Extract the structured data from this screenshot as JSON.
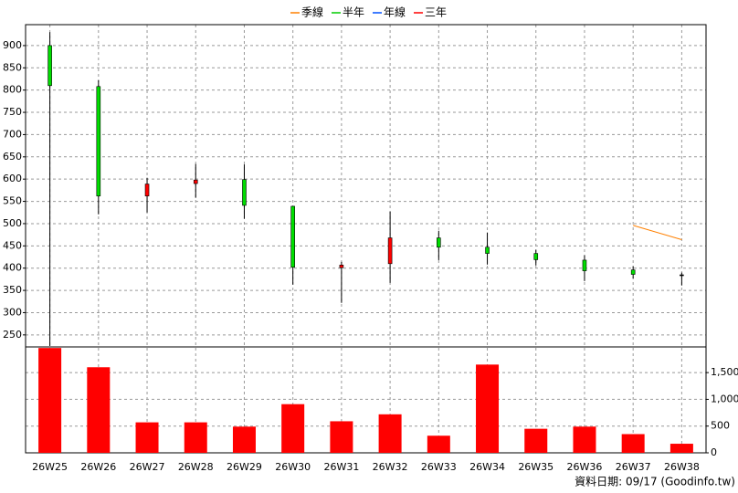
{
  "chart_data": {
    "type": "candlestick",
    "categories": [
      "26W25",
      "26W26",
      "26W27",
      "26W28",
      "26W29",
      "26W30",
      "26W31",
      "26W32",
      "26W33",
      "26W34",
      "26W35",
      "26W36",
      "26W37",
      "26W38"
    ],
    "open": [
      900,
      808,
      562,
      590,
      599,
      539,
      401,
      410,
      468,
      447,
      433,
      418,
      396,
      385
    ],
    "high": [
      930,
      822,
      603,
      634,
      633,
      540,
      414,
      527,
      484,
      480,
      441,
      429,
      404,
      390
    ],
    "low": [
      225,
      521,
      525,
      558,
      511,
      363,
      322,
      367,
      418,
      408,
      406,
      371,
      377,
      361
    ],
    "close": [
      810,
      562,
      589,
      598,
      541,
      402,
      407,
      468,
      447,
      433,
      419,
      394,
      386,
      385
    ],
    "up_color": "#ff0000",
    "down_color": "#00dd00",
    "flat_color": "#000000",
    "ylim": [
      223,
      947
    ],
    "yticks": [
      250,
      300,
      350,
      400,
      450,
      500,
      550,
      600,
      650,
      700,
      750,
      800,
      850,
      900
    ],
    "grid": true,
    "series": [
      {
        "name": "季線",
        "color": "#ff8000",
        "values": [
          null,
          null,
          null,
          null,
          null,
          null,
          null,
          null,
          null,
          null,
          null,
          null,
          496,
          464
        ]
      },
      {
        "name": "半年",
        "color": "#00cc00",
        "values": [
          null,
          null,
          null,
          null,
          null,
          null,
          null,
          null,
          null,
          null,
          null,
          null,
          null,
          null
        ]
      },
      {
        "name": "年線",
        "color": "#0050ff",
        "values": [
          null,
          null,
          null,
          null,
          null,
          null,
          null,
          null,
          null,
          null,
          null,
          null,
          null,
          null
        ]
      },
      {
        "name": "三年",
        "color": "#ff0000",
        "values": [
          null,
          null,
          null,
          null,
          null,
          null,
          null,
          null,
          null,
          null,
          null,
          null,
          null,
          null
        ]
      }
    ],
    "volume": {
      "color": "#ff0000",
      "values": [
        1960,
        1600,
        570,
        570,
        490,
        910,
        590,
        720,
        320,
        1650,
        450,
        490,
        350,
        170
      ],
      "ylim": [
        0,
        1980
      ],
      "yticks": [
        0,
        500,
        {
          "value": 1000,
          "label": "1,000"
        },
        {
          "value": 1500,
          "label": "1,500"
        }
      ]
    }
  },
  "footer": "資料日期: 09/17 (Goodinfo.tw)"
}
